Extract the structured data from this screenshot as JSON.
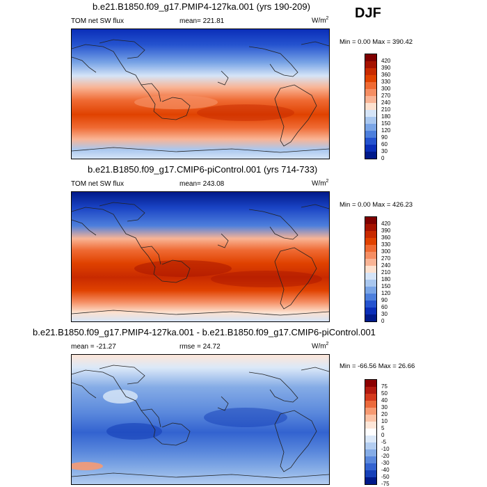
{
  "season": "DJF",
  "panels": [
    {
      "title": "b.e21.B1850.f09_g17.PMIP4-127ka.001 (yrs 190-209)",
      "left_label": "TOM net SW flux",
      "center_label": "mean= 221.81",
      "units": "W/m",
      "units_sup": "2",
      "minmax": "Min =   0.00 Max = 390.42",
      "colorbar": {
        "labels": [
          "420",
          "390",
          "360",
          "330",
          "300",
          "270",
          "240",
          "210",
          "180",
          "150",
          "120",
          "90",
          "60",
          "30",
          "0"
        ],
        "colors": [
          "#7f0000",
          "#a51200",
          "#c82a00",
          "#e04200",
          "#ef6a33",
          "#f58e63",
          "#f9b495",
          "#fde1cf",
          "#d5e4f7",
          "#a9c7ef",
          "#7aa5e6",
          "#4d7fdc",
          "#2553cf",
          "#0a2eb8",
          "#001a8a"
        ]
      }
    },
    {
      "title": "b.e21.B1850.f09_g17.CMIP6-piControl.001 (yrs 714-733)",
      "left_label": "TOM net SW flux",
      "center_label": "mean= 243.08",
      "units": "W/m",
      "units_sup": "2",
      "minmax": "Min =   0.00 Max = 426.23",
      "colorbar": {
        "labels": [
          "420",
          "390",
          "360",
          "330",
          "300",
          "270",
          "240",
          "210",
          "180",
          "150",
          "120",
          "90",
          "60",
          "30",
          "0"
        ],
        "colors": [
          "#7f0000",
          "#a51200",
          "#c82a00",
          "#e04200",
          "#ef6a33",
          "#f58e63",
          "#f9b495",
          "#fde1cf",
          "#d5e4f7",
          "#a9c7ef",
          "#7aa5e6",
          "#4d7fdc",
          "#2553cf",
          "#0a2eb8",
          "#001a8a"
        ]
      }
    },
    {
      "title": "b.e21.B1850.f09_g17.PMIP4-127ka.001 - b.e21.B1850.f09_g17.CMIP6-piControl.001",
      "left_label": "mean = -21.27",
      "center_label": "rmse =  24.72",
      "units": "W/m",
      "units_sup": "2",
      "minmax": "Min = -66.56 Max =  26.66",
      "colorbar": {
        "labels": [
          "75",
          "50",
          "40",
          "30",
          "20",
          "10",
          "5",
          "0",
          "-5",
          "-10",
          "-20",
          "-30",
          "-40",
          "-50",
          "-75"
        ],
        "colors": [
          "#8b0000",
          "#b31a0f",
          "#d43a1d",
          "#eb6a3c",
          "#f69a72",
          "#fbc3a6",
          "#fde6d8",
          "#ffffff",
          "#dbe8f8",
          "#b3cdf0",
          "#85ace6",
          "#5a88dc",
          "#3363d0",
          "#1640b8",
          "#001a8a"
        ]
      }
    }
  ]
}
